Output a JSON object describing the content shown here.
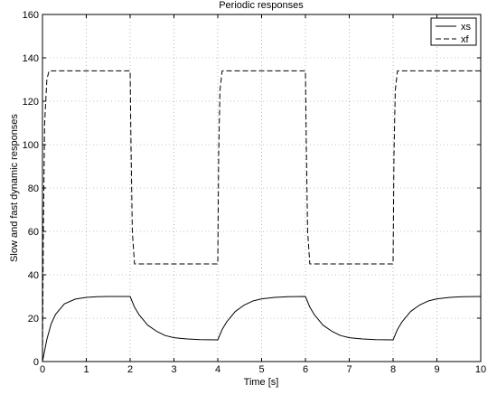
{
  "chart_data": {
    "type": "line",
    "title": "Periodic responses",
    "xlabel": "Time [s]",
    "ylabel": "Slow and fast dynamic responses",
    "xlim": [
      0,
      10
    ],
    "ylim": [
      0,
      160
    ],
    "xticks": [
      0,
      1,
      2,
      3,
      4,
      5,
      6,
      7,
      8,
      9,
      10
    ],
    "yticks": [
      0,
      20,
      40,
      60,
      80,
      100,
      120,
      140,
      160
    ],
    "grid": true,
    "legend_position": "top-right",
    "series": [
      {
        "name": "xs",
        "style": "solid",
        "color": "#000000",
        "x": [
          0,
          0.1,
          0.2,
          0.3,
          0.5,
          0.75,
          1.0,
          1.25,
          1.5,
          2.0,
          2.1,
          2.2,
          2.4,
          2.6,
          2.8,
          3.0,
          3.3,
          3.6,
          4.0,
          4.1,
          4.2,
          4.4,
          4.6,
          4.8,
          5.0,
          5.3,
          5.6,
          6.0,
          6.1,
          6.2,
          6.4,
          6.6,
          6.8,
          7.0,
          7.3,
          7.6,
          8.0,
          8.1,
          8.2,
          8.4,
          8.6,
          8.8,
          9.0,
          9.3,
          9.6,
          10.0
        ],
        "y": [
          0,
          10.2,
          17.5,
          21.8,
          26.6,
          28.8,
          29.6,
          29.9,
          30,
          30,
          25.1,
          21.7,
          16.8,
          14.0,
          12.0,
          11.0,
          10.4,
          10.1,
          10,
          14.8,
          18.2,
          23.1,
          26.0,
          27.9,
          28.9,
          29.6,
          29.9,
          30,
          25.1,
          21.7,
          16.8,
          14.0,
          12.0,
          11.0,
          10.4,
          10.1,
          10,
          14.8,
          18.2,
          23.1,
          26.0,
          27.9,
          28.9,
          29.6,
          29.9,
          30
        ]
      },
      {
        "name": "xf",
        "style": "dashed",
        "color": "#000000",
        "x": [
          0,
          0.02,
          0.05,
          0.1,
          0.15,
          2.0,
          2.02,
          2.05,
          2.1,
          4.0,
          4.02,
          4.05,
          4.1,
          6.0,
          6.02,
          6.05,
          6.1,
          8.0,
          8.02,
          8.05,
          8.1,
          10.0
        ],
        "y": [
          0,
          60,
          110,
          130,
          134,
          134,
          100,
          60,
          45,
          45,
          95,
          125,
          134,
          134,
          100,
          60,
          45,
          45,
          95,
          125,
          134,
          134
        ]
      }
    ]
  }
}
